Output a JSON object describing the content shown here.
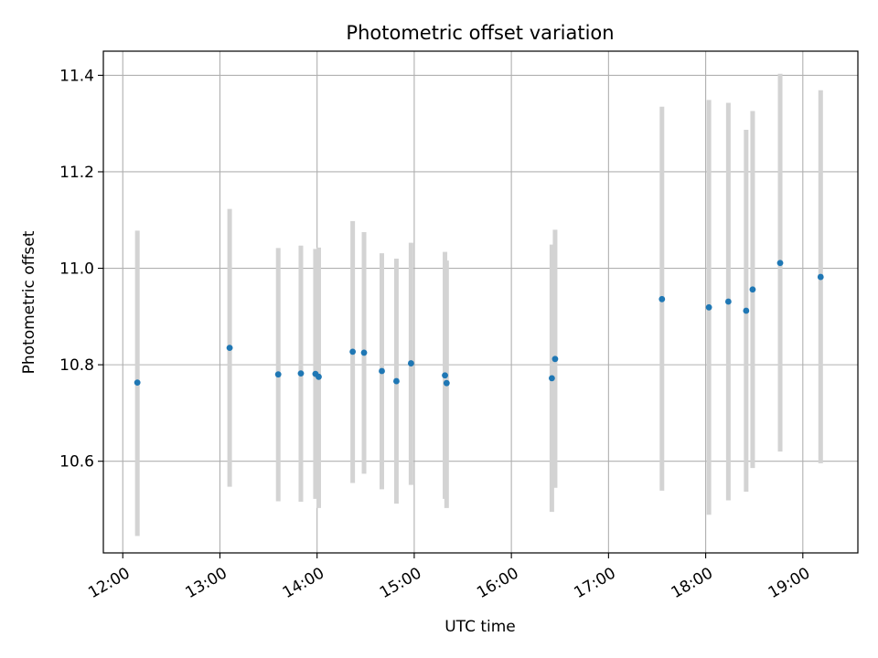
{
  "chart_data": {
    "type": "scatter",
    "title": "Photometric offset variation",
    "xlabel": "UTC time",
    "ylabel": "Photometric offset",
    "x_tick_labels": [
      "12:00",
      "13:00",
      "14:00",
      "15:00",
      "16:00",
      "17:00",
      "18:00",
      "19:00"
    ],
    "y_tick_labels": [
      "10.6",
      "10.8",
      "11.0",
      "11.2",
      "11.4"
    ],
    "xlim": [
      "11:48",
      "19:34"
    ],
    "ylim": [
      10.41,
      11.45
    ],
    "grid": true,
    "series": [
      {
        "marker_color": "#1f77b4",
        "error_bar_color": "#d3d3d3",
        "points": [
          {
            "time": "12:09",
            "y": 10.763,
            "low": 10.445,
            "high": 11.078
          },
          {
            "time": "13:06",
            "y": 10.835,
            "low": 10.547,
            "high": 11.123
          },
          {
            "time": "13:36",
            "y": 10.78,
            "low": 10.517,
            "high": 11.042
          },
          {
            "time": "13:50",
            "y": 10.782,
            "low": 10.516,
            "high": 11.047
          },
          {
            "time": "13:59",
            "y": 10.781,
            "low": 10.522,
            "high": 11.04
          },
          {
            "time": "14:01",
            "y": 10.775,
            "low": 10.503,
            "high": 11.043
          },
          {
            "time": "14:22",
            "y": 10.827,
            "low": 10.555,
            "high": 11.098
          },
          {
            "time": "14:29",
            "y": 10.825,
            "low": 10.574,
            "high": 11.075
          },
          {
            "time": "14:40",
            "y": 10.787,
            "low": 10.542,
            "high": 11.031
          },
          {
            "time": "14:49",
            "y": 10.766,
            "low": 10.512,
            "high": 11.02
          },
          {
            "time": "14:58",
            "y": 10.803,
            "low": 10.551,
            "high": 11.053
          },
          {
            "time": "15:19",
            "y": 10.778,
            "low": 10.522,
            "high": 11.034
          },
          {
            "time": "15:20",
            "y": 10.762,
            "low": 10.503,
            "high": 11.016
          },
          {
            "time": "16:25",
            "y": 10.772,
            "low": 10.495,
            "high": 11.049
          },
          {
            "time": "16:27",
            "y": 10.812,
            "low": 10.545,
            "high": 11.08
          },
          {
            "time": "17:33",
            "y": 10.936,
            "low": 10.539,
            "high": 11.335
          },
          {
            "time": "18:02",
            "y": 10.919,
            "low": 10.489,
            "high": 11.349
          },
          {
            "time": "18:14",
            "y": 10.931,
            "low": 10.519,
            "high": 11.343
          },
          {
            "time": "18:25",
            "y": 10.912,
            "low": 10.537,
            "high": 11.287
          },
          {
            "time": "18:29",
            "y": 10.956,
            "low": 10.586,
            "high": 11.326
          },
          {
            "time": "18:46",
            "y": 11.011,
            "low": 10.62,
            "high": 11.403
          },
          {
            "time": "19:11",
            "y": 10.982,
            "low": 10.596,
            "high": 11.369
          }
        ]
      }
    ]
  }
}
